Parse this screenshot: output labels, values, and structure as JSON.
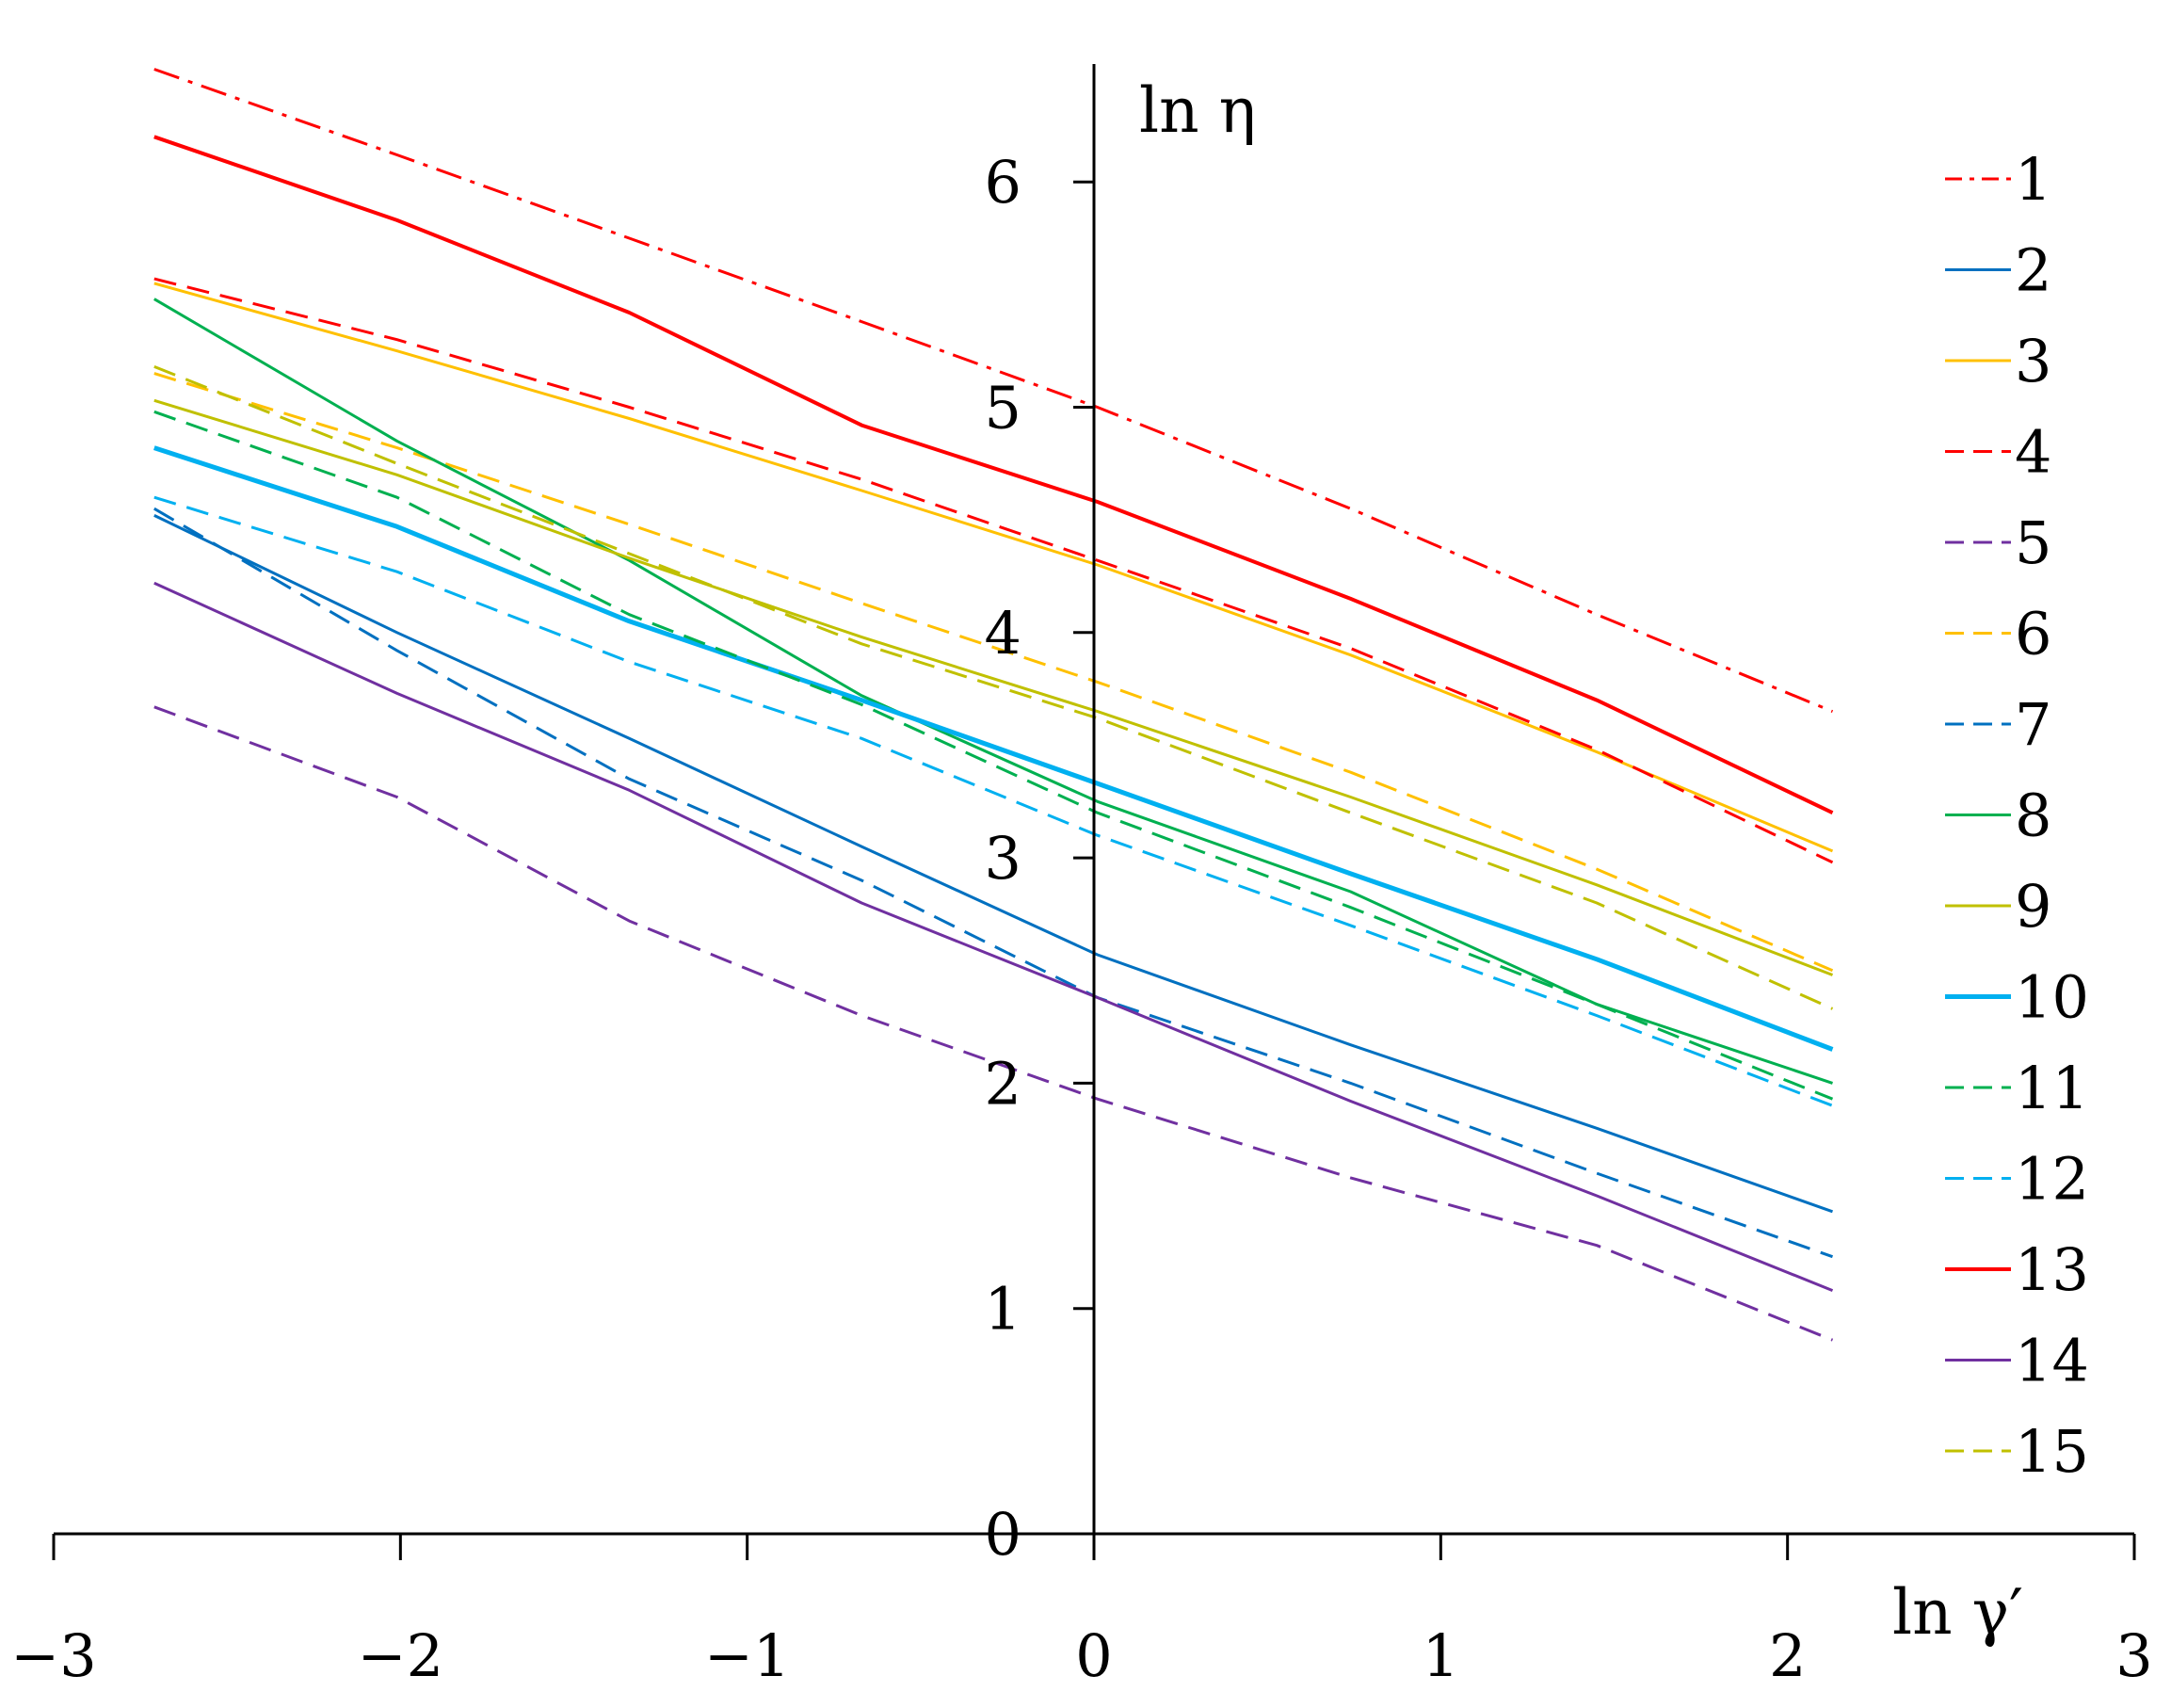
{
  "chart_data": {
    "type": "line",
    "xlabel": "ln γ′",
    "ylabel": "ln η",
    "xlim": [
      -3,
      3
    ],
    "ylim": [
      0,
      6.5
    ],
    "xticks": [
      "−3",
      "−2",
      "−1",
      "0",
      "1",
      "2",
      "3"
    ],
    "yticks": [
      "0",
      "1",
      "2",
      "3",
      "4",
      "5",
      "6"
    ],
    "legend_position": "right",
    "grid": false,
    "x": [
      -2.71,
      -2.01,
      -1.34,
      -0.67,
      0.01,
      0.74,
      1.45,
      2.13
    ],
    "series": [
      {
        "name": "1",
        "color": "#ff0000",
        "dash": "dashdot",
        "width": 3,
        "values": [
          6.5,
          6.12,
          5.75,
          5.38,
          5.0,
          4.55,
          4.08,
          3.65
        ]
      },
      {
        "name": "2",
        "color": "#0070c0",
        "dash": "solid",
        "width": 3,
        "values": [
          4.52,
          4.0,
          3.53,
          3.05,
          2.57,
          2.17,
          1.8,
          1.43
        ]
      },
      {
        "name": "3",
        "color": "#ffc000",
        "dash": "solid",
        "width": 3,
        "values": [
          5.55,
          5.25,
          4.95,
          4.63,
          4.3,
          3.9,
          3.47,
          3.03
        ]
      },
      {
        "name": "4",
        "color": "#ff0000",
        "dash": "dashed",
        "width": 3,
        "values": [
          5.57,
          5.3,
          5.0,
          4.68,
          4.32,
          3.93,
          3.48,
          2.98
        ]
      },
      {
        "name": "5",
        "color": "#7030a0",
        "dash": "dashed",
        "width": 3,
        "values": [
          3.67,
          3.27,
          2.72,
          2.3,
          1.93,
          1.58,
          1.28,
          0.86
        ]
      },
      {
        "name": "6",
        "color": "#ffc000",
        "dash": "dashed",
        "width": 3,
        "values": [
          5.15,
          4.82,
          4.48,
          4.13,
          3.78,
          3.38,
          2.95,
          2.5
        ]
      },
      {
        "name": "7",
        "color": "#0070c0",
        "dash": "dashed",
        "width": 3,
        "values": [
          4.55,
          3.92,
          3.35,
          2.9,
          2.38,
          2.0,
          1.6,
          1.23
        ]
      },
      {
        "name": "8",
        "color": "#00b050",
        "dash": "solid",
        "width": 3,
        "values": [
          5.48,
          4.85,
          4.32,
          3.72,
          3.25,
          2.85,
          2.35,
          2.0
        ]
      },
      {
        "name": "9",
        "color": "#c0c000",
        "dash": "solid",
        "width": 3,
        "values": [
          5.03,
          4.7,
          4.33,
          3.98,
          3.65,
          3.27,
          2.88,
          2.48
        ]
      },
      {
        "name": "10",
        "color": "#00b0f0",
        "dash": "solid",
        "width": 5,
        "values": [
          4.82,
          4.47,
          4.05,
          3.7,
          3.33,
          2.93,
          2.55,
          2.15
        ]
      },
      {
        "name": "11",
        "color": "#00b050",
        "dash": "dashed",
        "width": 3,
        "values": [
          4.98,
          4.6,
          4.08,
          3.68,
          3.2,
          2.78,
          2.35,
          1.93
        ]
      },
      {
        "name": "12",
        "color": "#00b0f0",
        "dash": "dashed",
        "width": 3,
        "values": [
          4.6,
          4.27,
          3.87,
          3.53,
          3.1,
          2.7,
          2.3,
          1.9
        ]
      },
      {
        "name": "13",
        "color": "#ff0000",
        "dash": "solid",
        "width": 4,
        "values": [
          6.2,
          5.83,
          5.42,
          4.92,
          4.58,
          4.15,
          3.7,
          3.2
        ]
      },
      {
        "name": "14",
        "color": "#7030a0",
        "dash": "solid",
        "width": 3,
        "values": [
          4.22,
          3.73,
          3.3,
          2.8,
          2.38,
          1.92,
          1.5,
          1.08
        ]
      },
      {
        "name": "15",
        "color": "#c0c000",
        "dash": "dashed",
        "width": 3,
        "values": [
          5.18,
          4.75,
          4.35,
          3.95,
          3.62,
          3.2,
          2.8,
          2.33
        ]
      }
    ]
  }
}
